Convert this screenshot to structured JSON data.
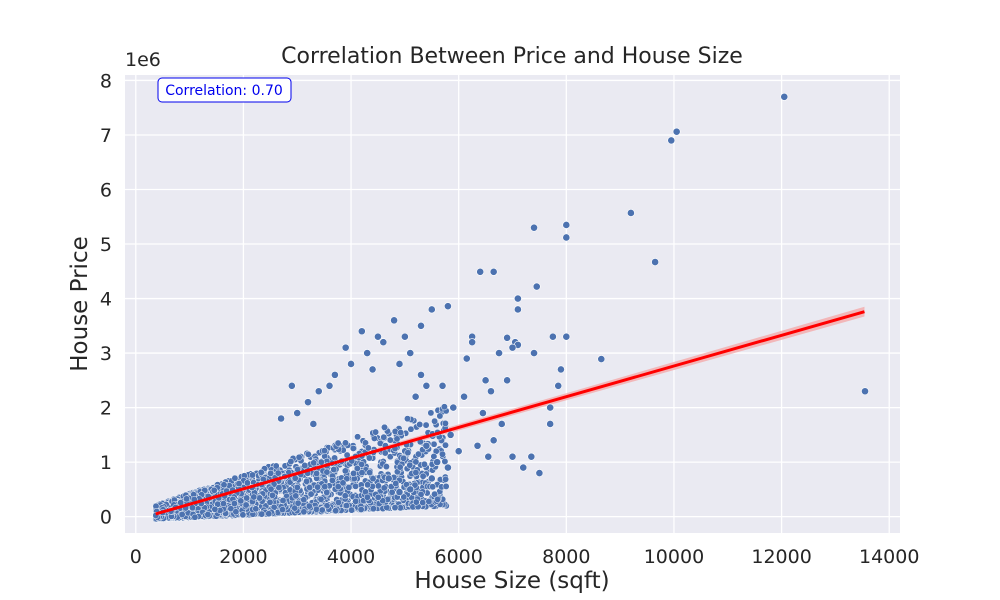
{
  "chart_data": {
    "type": "scatter",
    "title": "Correlation Between Price and House Size",
    "xlabel": "House Size (sqft)",
    "ylabel": "House Price",
    "y_offset_label": "1e6",
    "y_scale_factor": 1000000,
    "xlim": [
      -200,
      14200
    ],
    "ylim": [
      -300000,
      8100000
    ],
    "x_ticks": [
      0,
      2000,
      4000,
      6000,
      8000,
      10000,
      12000,
      14000
    ],
    "x_tick_labels": [
      "0",
      "2000",
      "4000",
      "6000",
      "8000",
      "10000",
      "12000",
      "14000"
    ],
    "y_ticks": [
      0,
      1000000,
      2000000,
      3000000,
      4000000,
      5000000,
      6000000,
      7000000,
      8000000
    ],
    "y_tick_labels": [
      "0",
      "1",
      "2",
      "3",
      "4",
      "5",
      "6",
      "7",
      "8"
    ],
    "grid": true,
    "annotation": "Correlation: 0.70",
    "colors": {
      "points": "#4c72b0",
      "regression": "#ff0000",
      "confidence_band": "#f4a6a6",
      "annotation": "#0000ee",
      "plot_background": "#eaeaf2",
      "grid": "#ffffff"
    },
    "regression_line": {
      "x": [
        370,
        13540
      ],
      "y": [
        50000,
        3760000
      ],
      "ci_halfwidth_start": 30000,
      "ci_halfwidth_end": 90000
    },
    "series": [
      {
        "type": "scatter",
        "points": [
          [
            12050,
            7700000
          ],
          [
            10050,
            7060000
          ],
          [
            9950,
            6900000
          ],
          [
            9200,
            5570000
          ],
          [
            8000,
            5350000
          ],
          [
            8000,
            5120000
          ],
          [
            7400,
            5300000
          ],
          [
            9650,
            4670000
          ],
          [
            6400,
            4490000
          ],
          [
            6650,
            4490000
          ],
          [
            7450,
            4220000
          ],
          [
            7100,
            4000000
          ],
          [
            7100,
            3800000
          ],
          [
            5800,
            3860000
          ],
          [
            5500,
            3800000
          ],
          [
            8650,
            2890000
          ],
          [
            7750,
            3300000
          ],
          [
            8000,
            3300000
          ],
          [
            13550,
            2300000
          ],
          [
            6900,
            3280000
          ],
          [
            7050,
            3200000
          ],
          [
            7100,
            3150000
          ],
          [
            6250,
            3300000
          ],
          [
            7000,
            3100000
          ],
          [
            7400,
            3000000
          ],
          [
            6750,
            3000000
          ],
          [
            7900,
            2700000
          ],
          [
            7850,
            2400000
          ],
          [
            6500,
            2500000
          ],
          [
            6900,
            2500000
          ],
          [
            7700,
            2000000
          ],
          [
            7700,
            1700000
          ],
          [
            7500,
            800000
          ],
          [
            7200,
            900000
          ],
          [
            7000,
            1100000
          ],
          [
            7350,
            1100000
          ],
          [
            6650,
            1400000
          ],
          [
            6800,
            1700000
          ],
          [
            6600,
            2300000
          ],
          [
            6150,
            2900000
          ],
          [
            6250,
            3200000
          ],
          [
            6100,
            2200000
          ],
          [
            6450,
            1900000
          ],
          [
            6350,
            1300000
          ],
          [
            6550,
            1100000
          ],
          [
            5700,
            2400000
          ],
          [
            5900,
            2000000
          ],
          [
            5850,
            1500000
          ],
          [
            6000,
            1200000
          ],
          [
            5800,
            900000
          ],
          [
            5600,
            1000000
          ],
          [
            5400,
            1300000
          ],
          [
            5300,
            2600000
          ],
          [
            5400,
            2400000
          ],
          [
            5200,
            2200000
          ],
          [
            5000,
            3300000
          ],
          [
            5100,
            3000000
          ],
          [
            4900,
            2800000
          ],
          [
            5300,
            3500000
          ],
          [
            4800,
            3600000
          ],
          [
            4600,
            3200000
          ],
          [
            4500,
            3300000
          ],
          [
            4300,
            3000000
          ],
          [
            4200,
            3400000
          ],
          [
            4400,
            2700000
          ],
          [
            4000,
            2800000
          ],
          [
            3900,
            3100000
          ],
          [
            3700,
            2600000
          ],
          [
            3600,
            2400000
          ],
          [
            3400,
            2300000
          ],
          [
            3200,
            2100000
          ],
          [
            3000,
            1900000
          ],
          [
            2900,
            2400000
          ],
          [
            2700,
            1800000
          ],
          [
            3300,
            1700000
          ],
          [
            4700,
            700000
          ],
          [
            5100,
            500000
          ],
          [
            4900,
            450000
          ],
          [
            5500,
            700000
          ]
        ]
      }
    ]
  }
}
